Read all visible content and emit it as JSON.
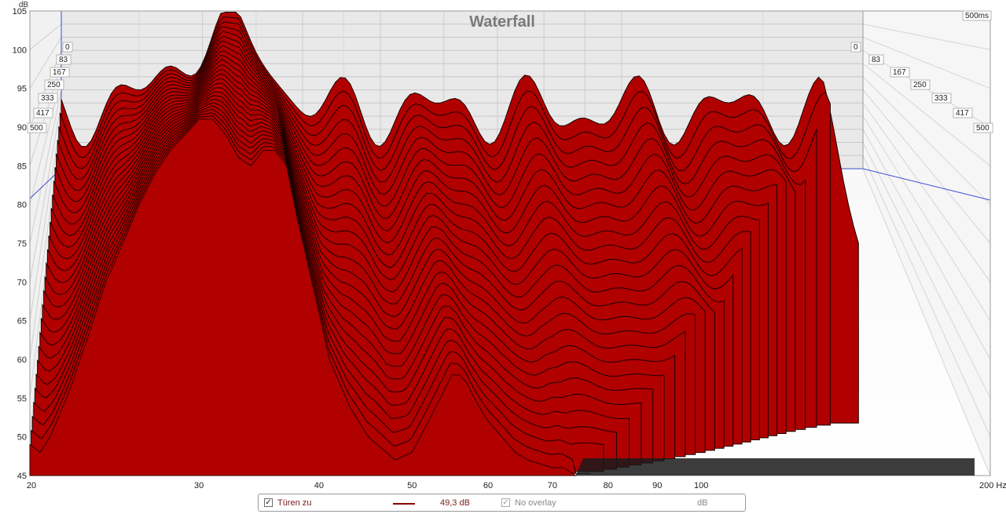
{
  "chart_data": {
    "type": "waterfall",
    "title": "Waterfall",
    "ylabel": "dB",
    "ylim": [
      45,
      105
    ],
    "y_ticks": [
      45,
      50,
      55,
      60,
      65,
      70,
      75,
      80,
      85,
      90,
      95,
      100,
      105
    ],
    "xlim": [
      20,
      200
    ],
    "x_scale": "log",
    "x_unit": "Hz",
    "x_ticks": [
      {
        "value": 20,
        "label": "20"
      },
      {
        "value": 30,
        "label": "30"
      },
      {
        "value": 40,
        "label": "40"
      },
      {
        "value": 50,
        "label": "50"
      },
      {
        "value": 60,
        "label": "60"
      },
      {
        "value": 70,
        "label": "70"
      },
      {
        "value": 80,
        "label": "80"
      },
      {
        "value": 90,
        "label": "90"
      },
      {
        "value": 100,
        "label": "100"
      },
      {
        "value": 200,
        "label": "200 Hz"
      }
    ],
    "time_slices_ms": [
      0,
      83,
      167,
      250,
      333,
      417,
      500
    ],
    "time_slice_labels": [
      "0",
      "83",
      "167",
      "250",
      "333",
      "417",
      "500"
    ],
    "time_unit_label": "500ms",
    "grid": true,
    "fill_color": "#b00000",
    "front_slice_db": [
      [
        20,
        49
      ],
      [
        20.5,
        48
      ],
      [
        21,
        50
      ],
      [
        22,
        56
      ],
      [
        23,
        63
      ],
      [
        24,
        70
      ],
      [
        25,
        75
      ],
      [
        26,
        80
      ],
      [
        27,
        84
      ],
      [
        28,
        87
      ],
      [
        29,
        89
      ],
      [
        30,
        91
      ],
      [
        31,
        91
      ],
      [
        32,
        89
      ],
      [
        33,
        86
      ],
      [
        34,
        85
      ],
      [
        35,
        87
      ],
      [
        36,
        87
      ],
      [
        37,
        85
      ],
      [
        38,
        78
      ],
      [
        39,
        72
      ],
      [
        40,
        66
      ],
      [
        41,
        60
      ],
      [
        43,
        54
      ],
      [
        45,
        50
      ],
      [
        47,
        48
      ],
      [
        48,
        47
      ],
      [
        50,
        48
      ],
      [
        52,
        52
      ],
      [
        54,
        56
      ],
      [
        55,
        58
      ],
      [
        56,
        58
      ],
      [
        57,
        57
      ],
      [
        58,
        55
      ],
      [
        60,
        52
      ],
      [
        62,
        50
      ],
      [
        64,
        48
      ],
      [
        66,
        47
      ],
      [
        68,
        46.5
      ],
      [
        70,
        46
      ],
      [
        72,
        46
      ],
      [
        74,
        45
      ]
    ]
  },
  "legend": {
    "checked_mark": "✓",
    "measurement_name": "Türen zu",
    "measurement_color": "#8b0000",
    "measurement_value": "49,3 dB",
    "overlay_label": "No overlay",
    "unit": "dB"
  }
}
